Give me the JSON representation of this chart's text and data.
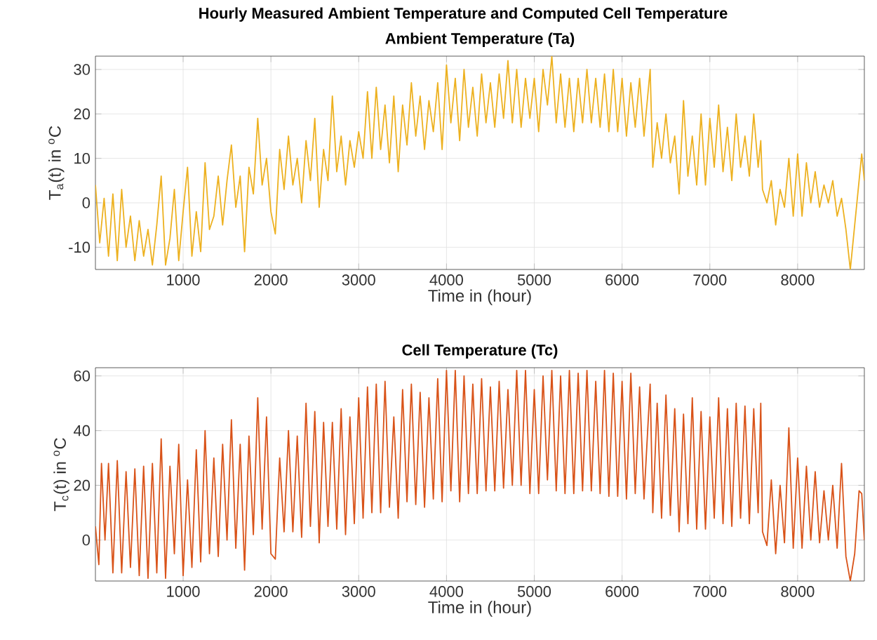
{
  "chart_data": [
    {
      "type": "line",
      "title": "Hourly Measured Ambient Temperature and Computed Cell Temperature",
      "subtitle": "Ambient Temperature (Ta)",
      "xlabel": "Time in (hour)",
      "ylabel": "T$_{a}$(t) in $^{o}$C",
      "xlim": [
        1,
        8760
      ],
      "ylim": [
        -15,
        33
      ],
      "xticks": [
        1000,
        2000,
        3000,
        4000,
        5000,
        6000,
        7000,
        8000
      ],
      "yticks": [
        -10,
        0,
        10,
        20,
        30
      ],
      "grid": true,
      "color": "#edb120",
      "x": [
        1,
        50,
        100,
        150,
        200,
        250,
        300,
        350,
        400,
        450,
        500,
        550,
        600,
        650,
        700,
        750,
        800,
        850,
        900,
        950,
        1000,
        1050,
        1100,
        1150,
        1200,
        1250,
        1300,
        1350,
        1400,
        1450,
        1500,
        1550,
        1600,
        1650,
        1700,
        1750,
        1800,
        1850,
        1900,
        1950,
        2000,
        2050,
        2100,
        2150,
        2200,
        2250,
        2300,
        2350,
        2400,
        2450,
        2500,
        2550,
        2600,
        2650,
        2700,
        2750,
        2800,
        2850,
        2900,
        2950,
        3000,
        3050,
        3100,
        3150,
        3200,
        3250,
        3300,
        3350,
        3400,
        3450,
        3500,
        3550,
        3600,
        3650,
        3700,
        3750,
        3800,
        3850,
        3900,
        3950,
        4000,
        4050,
        4100,
        4150,
        4200,
        4250,
        4300,
        4350,
        4400,
        4450,
        4500,
        4550,
        4600,
        4650,
        4700,
        4750,
        4800,
        4850,
        4900,
        4950,
        5000,
        5050,
        5100,
        5150,
        5200,
        5250,
        5300,
        5350,
        5400,
        5450,
        5500,
        5550,
        5600,
        5650,
        5700,
        5750,
        5800,
        5850,
        5900,
        5950,
        6000,
        6050,
        6100,
        6150,
        6200,
        6250,
        6320,
        6350,
        6400,
        6450,
        6500,
        6550,
        6600,
        6650,
        6700,
        6750,
        6800,
        6850,
        6900,
        6950,
        7000,
        7050,
        7100,
        7150,
        7200,
        7250,
        7300,
        7350,
        7400,
        7450,
        7500,
        7550,
        7580,
        7600,
        7650,
        7700,
        7750,
        7800,
        7850,
        7900,
        7950,
        8000,
        8050,
        8100,
        8150,
        8200,
        8250,
        8300,
        8350,
        8400,
        8450,
        8500,
        8550,
        8600,
        8650,
        8700,
        8730,
        8760
      ],
      "values": [
        4,
        -9,
        1,
        -12,
        2,
        -13,
        3,
        -10,
        -3,
        -13,
        -4,
        -12,
        -6,
        -14,
        -5,
        6,
        -14,
        -8,
        3,
        -13,
        -2,
        8,
        -12,
        -2,
        -11,
        9,
        -6,
        -3,
        6,
        -5,
        5,
        13,
        -1,
        6,
        -11,
        8,
        2,
        19,
        4,
        10,
        -2,
        -7,
        12,
        3,
        15,
        4,
        10,
        0,
        14,
        5,
        19,
        -1,
        12,
        5,
        24,
        7,
        15,
        4,
        14,
        8,
        16,
        10,
        25,
        10,
        26,
        12,
        22,
        9,
        24,
        7,
        22,
        13,
        27,
        15,
        24,
        12,
        23,
        16,
        27,
        12,
        31,
        18,
        28,
        14,
        30,
        17,
        26,
        15,
        29,
        18,
        27,
        17,
        29,
        19,
        32,
        18,
        30,
        17,
        28,
        19,
        28,
        16,
        30,
        22,
        33,
        18,
        29,
        17,
        28,
        16,
        28,
        18,
        30,
        18,
        28,
        17,
        29,
        16,
        30,
        16,
        28,
        15,
        27,
        17,
        28,
        15,
        30,
        8,
        18,
        10,
        20,
        9,
        15,
        2,
        23,
        6,
        15,
        4,
        20,
        4,
        19,
        8,
        22,
        7,
        17,
        5,
        20,
        8,
        15,
        6,
        20,
        8,
        14,
        3,
        0,
        5,
        -5,
        3,
        -1,
        10,
        -3,
        11,
        -3,
        9,
        0,
        7,
        -1,
        4,
        0,
        5,
        -3,
        1,
        -6,
        -15,
        -5,
        5,
        11,
        5
      ]
    },
    {
      "type": "line",
      "title": "Cell Temperature (Tc)",
      "xlabel": "Time in (hour)",
      "ylabel": "T$_{c}$(t) in $^{o}$C",
      "xlim": [
        1,
        8760
      ],
      "ylim": [
        -15,
        63
      ],
      "xticks": [
        1000,
        2000,
        3000,
        4000,
        5000,
        6000,
        7000,
        8000
      ],
      "yticks": [
        0,
        20,
        40,
        60
      ],
      "grid": true,
      "color": "#d95319",
      "x": [
        1,
        40,
        70,
        110,
        150,
        200,
        250,
        300,
        350,
        400,
        450,
        500,
        550,
        600,
        650,
        700,
        750,
        800,
        850,
        900,
        950,
        1000,
        1050,
        1100,
        1150,
        1200,
        1250,
        1300,
        1350,
        1400,
        1450,
        1500,
        1550,
        1600,
        1650,
        1700,
        1750,
        1800,
        1850,
        1900,
        1950,
        2000,
        2050,
        2100,
        2150,
        2200,
        2250,
        2300,
        2350,
        2400,
        2450,
        2500,
        2550,
        2600,
        2650,
        2700,
        2750,
        2800,
        2850,
        2900,
        2950,
        3000,
        3050,
        3100,
        3150,
        3200,
        3250,
        3300,
        3350,
        3400,
        3450,
        3500,
        3550,
        3600,
        3650,
        3700,
        3750,
        3800,
        3850,
        3900,
        3950,
        4000,
        4050,
        4100,
        4150,
        4200,
        4250,
        4300,
        4350,
        4400,
        4450,
        4500,
        4550,
        4600,
        4650,
        4700,
        4750,
        4800,
        4850,
        4900,
        4950,
        5000,
        5050,
        5100,
        5150,
        5200,
        5250,
        5300,
        5350,
        5400,
        5450,
        5500,
        5550,
        5600,
        5650,
        5700,
        5750,
        5800,
        5850,
        5900,
        5950,
        6000,
        6050,
        6100,
        6150,
        6200,
        6250,
        6320,
        6350,
        6400,
        6450,
        6500,
        6550,
        6600,
        6650,
        6700,
        6750,
        6800,
        6850,
        6900,
        6950,
        7000,
        7050,
        7100,
        7150,
        7200,
        7250,
        7300,
        7350,
        7400,
        7450,
        7500,
        7550,
        7580,
        7600,
        7650,
        7700,
        7750,
        7800,
        7850,
        7900,
        7950,
        8000,
        8050,
        8100,
        8150,
        8200,
        8250,
        8300,
        8350,
        8400,
        8450,
        8500,
        8550,
        8600,
        8650,
        8700,
        8730,
        8760
      ],
      "values": [
        5,
        -9,
        28,
        0,
        28,
        -12,
        29,
        -12,
        25,
        -10,
        26,
        -13,
        27,
        -14,
        28,
        -12,
        37,
        -14,
        27,
        -5,
        35,
        -13,
        22,
        -10,
        33,
        -8,
        40,
        -5,
        30,
        -6,
        35,
        0,
        44,
        -3,
        35,
        -11,
        38,
        2,
        52,
        4,
        45,
        -5,
        -7,
        30,
        3,
        40,
        3,
        38,
        1,
        50,
        5,
        47,
        -1,
        43,
        5,
        43,
        4,
        48,
        2,
        45,
        6,
        52,
        8,
        56,
        10,
        57,
        10,
        58,
        12,
        45,
        8,
        55,
        14,
        57,
        13,
        54,
        12,
        52,
        15,
        59,
        14,
        62,
        18,
        62,
        14,
        60,
        17,
        57,
        17,
        59,
        18,
        56,
        18,
        58,
        19,
        55,
        20,
        62,
        20,
        62,
        17,
        55,
        17,
        60,
        22,
        62,
        18,
        60,
        17,
        62,
        17,
        61,
        18,
        62,
        18,
        58,
        17,
        62,
        16,
        61,
        16,
        58,
        15,
        61,
        17,
        56,
        15,
        57,
        10,
        50,
        8,
        53,
        9,
        48,
        3,
        46,
        6,
        52,
        4,
        47,
        4,
        45,
        8,
        52,
        6,
        48,
        5,
        50,
        8,
        49,
        6,
        48,
        10,
        50,
        3,
        -2,
        22,
        -5,
        20,
        -1,
        41,
        -3,
        30,
        -3,
        27,
        0,
        25,
        -1,
        18,
        0,
        20,
        -3,
        28,
        -6,
        -15,
        -5,
        18,
        17,
        0
      ]
    }
  ]
}
